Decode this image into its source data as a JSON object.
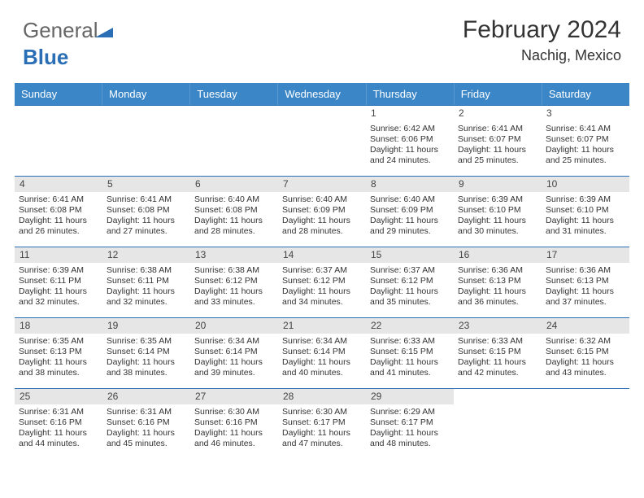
{
  "brand": {
    "part1": "General",
    "part2": "Blue"
  },
  "header": {
    "title": "February 2024",
    "location": "Nachig, Mexico"
  },
  "colors": {
    "header_bg": "#3b86c7",
    "rule": "#2a6fb5",
    "stripe": "#e6e6e6",
    "text": "#333333"
  },
  "dayNames": [
    "Sunday",
    "Monday",
    "Tuesday",
    "Wednesday",
    "Thursday",
    "Friday",
    "Saturday"
  ],
  "weeks": [
    [
      null,
      null,
      null,
      null,
      {
        "n": "1",
        "sunrise": "6:42 AM",
        "sunset": "6:06 PM",
        "daylight": "11 hours and 24 minutes."
      },
      {
        "n": "2",
        "sunrise": "6:41 AM",
        "sunset": "6:07 PM",
        "daylight": "11 hours and 25 minutes."
      },
      {
        "n": "3",
        "sunrise": "6:41 AM",
        "sunset": "6:07 PM",
        "daylight": "11 hours and 25 minutes."
      }
    ],
    [
      {
        "n": "4",
        "sunrise": "6:41 AM",
        "sunset": "6:08 PM",
        "daylight": "11 hours and 26 minutes."
      },
      {
        "n": "5",
        "sunrise": "6:41 AM",
        "sunset": "6:08 PM",
        "daylight": "11 hours and 27 minutes."
      },
      {
        "n": "6",
        "sunrise": "6:40 AM",
        "sunset": "6:08 PM",
        "daylight": "11 hours and 28 minutes."
      },
      {
        "n": "7",
        "sunrise": "6:40 AM",
        "sunset": "6:09 PM",
        "daylight": "11 hours and 28 minutes."
      },
      {
        "n": "8",
        "sunrise": "6:40 AM",
        "sunset": "6:09 PM",
        "daylight": "11 hours and 29 minutes."
      },
      {
        "n": "9",
        "sunrise": "6:39 AM",
        "sunset": "6:10 PM",
        "daylight": "11 hours and 30 minutes."
      },
      {
        "n": "10",
        "sunrise": "6:39 AM",
        "sunset": "6:10 PM",
        "daylight": "11 hours and 31 minutes."
      }
    ],
    [
      {
        "n": "11",
        "sunrise": "6:39 AM",
        "sunset": "6:11 PM",
        "daylight": "11 hours and 32 minutes."
      },
      {
        "n": "12",
        "sunrise": "6:38 AM",
        "sunset": "6:11 PM",
        "daylight": "11 hours and 32 minutes."
      },
      {
        "n": "13",
        "sunrise": "6:38 AM",
        "sunset": "6:12 PM",
        "daylight": "11 hours and 33 minutes."
      },
      {
        "n": "14",
        "sunrise": "6:37 AM",
        "sunset": "6:12 PM",
        "daylight": "11 hours and 34 minutes."
      },
      {
        "n": "15",
        "sunrise": "6:37 AM",
        "sunset": "6:12 PM",
        "daylight": "11 hours and 35 minutes."
      },
      {
        "n": "16",
        "sunrise": "6:36 AM",
        "sunset": "6:13 PM",
        "daylight": "11 hours and 36 minutes."
      },
      {
        "n": "17",
        "sunrise": "6:36 AM",
        "sunset": "6:13 PM",
        "daylight": "11 hours and 37 minutes."
      }
    ],
    [
      {
        "n": "18",
        "sunrise": "6:35 AM",
        "sunset": "6:13 PM",
        "daylight": "11 hours and 38 minutes."
      },
      {
        "n": "19",
        "sunrise": "6:35 AM",
        "sunset": "6:14 PM",
        "daylight": "11 hours and 38 minutes."
      },
      {
        "n": "20",
        "sunrise": "6:34 AM",
        "sunset": "6:14 PM",
        "daylight": "11 hours and 39 minutes."
      },
      {
        "n": "21",
        "sunrise": "6:34 AM",
        "sunset": "6:14 PM",
        "daylight": "11 hours and 40 minutes."
      },
      {
        "n": "22",
        "sunrise": "6:33 AM",
        "sunset": "6:15 PM",
        "daylight": "11 hours and 41 minutes."
      },
      {
        "n": "23",
        "sunrise": "6:33 AM",
        "sunset": "6:15 PM",
        "daylight": "11 hours and 42 minutes."
      },
      {
        "n": "24",
        "sunrise": "6:32 AM",
        "sunset": "6:15 PM",
        "daylight": "11 hours and 43 minutes."
      }
    ],
    [
      {
        "n": "25",
        "sunrise": "6:31 AM",
        "sunset": "6:16 PM",
        "daylight": "11 hours and 44 minutes."
      },
      {
        "n": "26",
        "sunrise": "6:31 AM",
        "sunset": "6:16 PM",
        "daylight": "11 hours and 45 minutes."
      },
      {
        "n": "27",
        "sunrise": "6:30 AM",
        "sunset": "6:16 PM",
        "daylight": "11 hours and 46 minutes."
      },
      {
        "n": "28",
        "sunrise": "6:30 AM",
        "sunset": "6:17 PM",
        "daylight": "11 hours and 47 minutes."
      },
      {
        "n": "29",
        "sunrise": "6:29 AM",
        "sunset": "6:17 PM",
        "daylight": "11 hours and 48 minutes."
      },
      null,
      null
    ]
  ],
  "labels": {
    "sunrise": "Sunrise:",
    "sunset": "Sunset:",
    "daylight": "Daylight:"
  }
}
